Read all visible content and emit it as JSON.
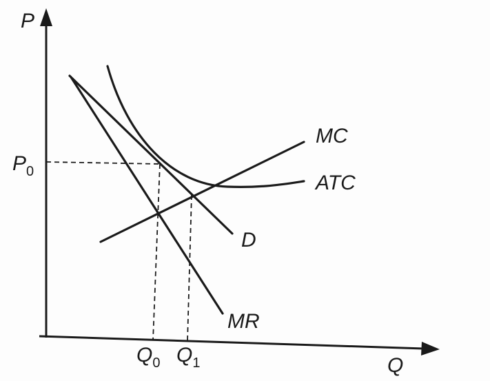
{
  "axes": {
    "y_label": "P",
    "x_label": "Q"
  },
  "ticks": {
    "p0": {
      "base": "P",
      "sub": "0"
    },
    "q0": {
      "base": "Q",
      "sub": "0"
    },
    "q1": {
      "base": "Q",
      "sub": "1"
    }
  },
  "curves": {
    "mc": "MC",
    "atc": "ATC",
    "d": "D",
    "mr": "MR"
  }
}
